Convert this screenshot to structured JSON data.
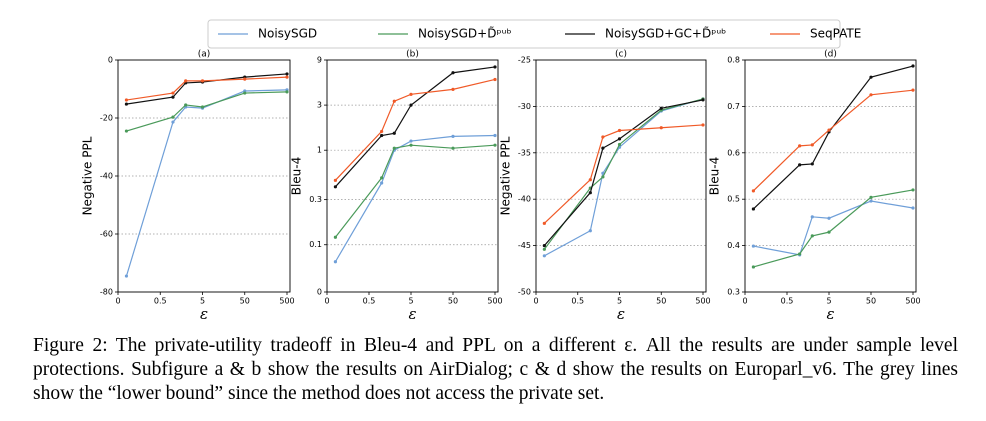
{
  "legend": [
    {
      "name": "NoisySGD",
      "color": "#6f9fd8"
    },
    {
      "name": "NoisySGD+D̃ᵖᵘᵇ",
      "color": "#4a9a5a"
    },
    {
      "name": "NoisySGD+GC+D̃ᵖᵘᵇ",
      "color": "#111111"
    },
    {
      "name": "SeqPATE",
      "color": "#f05a28"
    }
  ],
  "chart_data": [
    {
      "type": "line",
      "title": "(a)",
      "ylabel": "Negative PPL",
      "xlabel": "ε",
      "x": [
        0.1,
        1,
        2,
        5,
        50,
        500
      ],
      "xlim": [
        0,
        500
      ],
      "xticks": [
        0,
        0.5,
        5,
        50,
        500
      ],
      "xscale": "symlog",
      "xlinthresh": 0.5,
      "ylim": [
        -80,
        0
      ],
      "yticks": [
        -80,
        -60,
        -40,
        -20,
        0
      ],
      "yscale": "linear",
      "grid": true,
      "series": [
        {
          "values": [
            -74.5,
            -21.4,
            -16.2,
            -16.6,
            -10.7,
            -10.3
          ]
        },
        {
          "values": [
            -24.5,
            -19.7,
            -15.5,
            -16.2,
            -11.4,
            -11.0
          ]
        },
        {
          "values": [
            -15.2,
            -12.8,
            -7.9,
            -7.6,
            -5.9,
            -4.8
          ]
        },
        {
          "values": [
            -13.8,
            -11.4,
            -7.2,
            -7.2,
            -6.6,
            -5.9
          ]
        }
      ]
    },
    {
      "type": "line",
      "title": "(b)",
      "ylabel": "Bleu-4",
      "xlabel": "ε",
      "x": [
        0.1,
        1,
        2,
        5,
        50,
        500
      ],
      "xlim": [
        0,
        500
      ],
      "xticks": [
        0,
        0.5,
        5,
        50,
        500
      ],
      "xscale": "symlog",
      "xlinthresh": 0.5,
      "ylim": [
        0,
        9
      ],
      "yticks": [
        0,
        0.1,
        0.3,
        1,
        3,
        9
      ],
      "yscale": "symlog",
      "ylinthresh": 0.1,
      "grid": true,
      "series": [
        {
          "values": [
            0.064,
            0.45,
            1.0,
            1.25,
            1.4,
            1.43
          ]
        },
        {
          "values": [
            0.12,
            0.51,
            1.05,
            1.13,
            1.05,
            1.13
          ]
        },
        {
          "values": [
            0.41,
            1.43,
            1.51,
            3.0,
            6.6,
            7.6
          ]
        },
        {
          "values": [
            0.48,
            1.58,
            3.3,
            3.9,
            4.4,
            5.6
          ]
        }
      ]
    },
    {
      "type": "line",
      "title": "(c)",
      "ylabel": "Negative PPL",
      "xlabel": "ε",
      "x": [
        0.1,
        1,
        2,
        5,
        50,
        500
      ],
      "xlim": [
        0,
        500
      ],
      "xticks": [
        0,
        0.5,
        5,
        50,
        500
      ],
      "xscale": "symlog",
      "xlinthresh": 0.5,
      "ylim": [
        -50,
        -25
      ],
      "yticks": [
        -50,
        -45,
        -40,
        -35,
        -30,
        -25
      ],
      "yscale": "linear",
      "grid": true,
      "series": [
        {
          "values": [
            -46.1,
            -43.4,
            -37.2,
            -34.4,
            -30.5,
            -29.2
          ]
        },
        {
          "values": [
            -45.4,
            -38.8,
            -37.6,
            -34.1,
            -30.4,
            -29.2
          ]
        },
        {
          "values": [
            -45.0,
            -39.3,
            -34.5,
            -33.5,
            -30.2,
            -29.3
          ]
        },
        {
          "values": [
            -42.6,
            -37.9,
            -33.3,
            -32.6,
            -32.3,
            -32.0
          ]
        }
      ]
    },
    {
      "type": "line",
      "title": "(d)",
      "ylabel": "Bleu-4",
      "xlabel": "ε",
      "x": [
        0.1,
        1,
        2,
        5,
        50,
        500
      ],
      "xlim": [
        0,
        500
      ],
      "xticks": [
        0,
        0.5,
        5,
        50,
        500
      ],
      "xscale": "symlog",
      "xlinthresh": 0.5,
      "ylim": [
        0.3,
        0.8
      ],
      "yticks": [
        0.3,
        0.4,
        0.5,
        0.6,
        0.7,
        0.8
      ],
      "yscale": "linear",
      "grid": true,
      "series": [
        {
          "values": [
            0.399,
            0.38,
            0.462,
            0.459,
            0.496,
            0.481
          ]
        },
        {
          "values": [
            0.354,
            0.382,
            0.421,
            0.429,
            0.504,
            0.52
          ]
        },
        {
          "values": [
            0.479,
            0.574,
            0.576,
            0.645,
            0.763,
            0.787
          ]
        },
        {
          "values": [
            0.518,
            0.615,
            0.617,
            0.649,
            0.725,
            0.735
          ]
        }
      ]
    }
  ],
  "caption": "Figure 2: The private-utility tradeoff in Bleu-4 and PPL on a different ε. All the results are under sample level protections. Subfigure a & b show the results on AirDialog; c & d show the results on Europarl_v6. The grey lines show the “lower bound” since the method does not access the private set."
}
